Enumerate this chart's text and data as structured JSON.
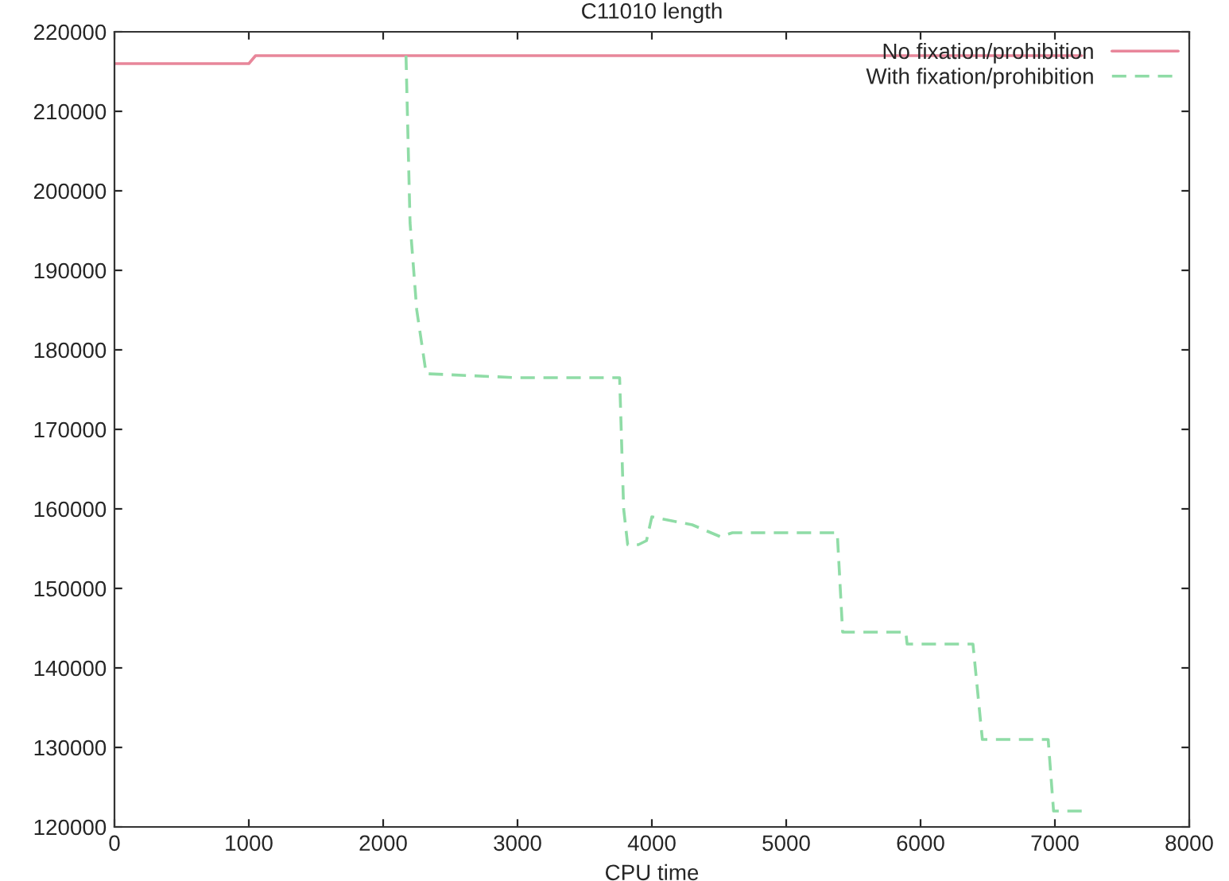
{
  "chart_data": {
    "type": "line",
    "title": "C11010 length",
    "xlabel": "CPU time",
    "xlim": [
      0,
      8000
    ],
    "xticks": [
      0,
      1000,
      2000,
      3000,
      4000,
      5000,
      6000,
      7000,
      8000
    ],
    "ylim": [
      120000,
      220000
    ],
    "yticks": [
      120000,
      130000,
      140000,
      150000,
      160000,
      170000,
      180000,
      190000,
      200000,
      210000,
      220000
    ],
    "grid": false,
    "legend": "top right",
    "marker": "none",
    "series": [
      {
        "name": "No fixation/prohibition",
        "color": "#e8869a",
        "line_style": "solid",
        "x": [
          0,
          1000,
          1050,
          7200
        ],
        "values": [
          216000,
          216000,
          217000,
          217000
        ]
      },
      {
        "name": "With fixation/prohibition",
        "color": "#8fdca6",
        "line_style": "dashed",
        "x": [
          2170,
          2200,
          2250,
          2320,
          3000,
          3760,
          3790,
          3820,
          3900,
          3960,
          4000,
          4300,
          4510,
          4600,
          5380,
          5420,
          5890,
          5900,
          6390,
          6460,
          6950,
          6990,
          7220
        ],
        "values": [
          217000,
          196000,
          185000,
          177000,
          176500,
          176500,
          160000,
          155500,
          155500,
          156000,
          159000,
          158000,
          156500,
          157000,
          157000,
          144500,
          144500,
          143000,
          143000,
          131000,
          131000,
          122000,
          122000
        ]
      }
    ]
  }
}
